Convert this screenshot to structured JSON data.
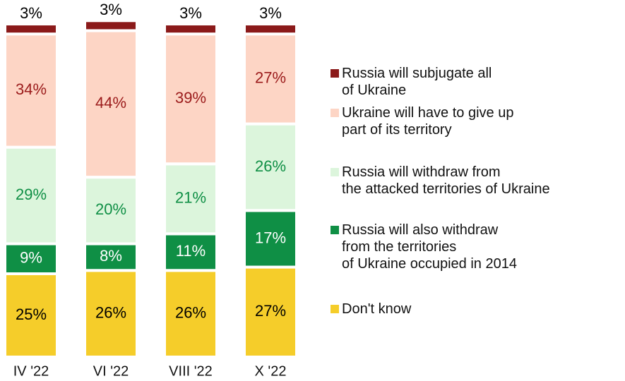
{
  "chart_data": {
    "type": "stacked_bar",
    "categories": [
      "IV '22",
      "VI '22",
      "VIII '22",
      "X '22"
    ],
    "series": [
      {
        "name": "Don't know",
        "color": "#f5cd2a",
        "label_color": "#000000",
        "values": [
          25,
          26,
          26,
          27
        ],
        "value_labels": [
          "25%",
          "26%",
          "26%",
          "27%"
        ]
      },
      {
        "name": "Russia will also withdraw\nfrom the territories\nof Ukraine occupied in 2014",
        "color": "#0f8f45",
        "label_color": "#ffffff",
        "values": [
          9,
          8,
          11,
          17
        ],
        "value_labels": [
          "9%",
          "8%",
          "11%",
          "17%"
        ]
      },
      {
        "name": "Russia will withdraw from\nthe attacked territories of Ukraine",
        "color": "#dcf5dc",
        "label_color": "#0f8f45",
        "values": [
          29,
          20,
          21,
          26
        ],
        "value_labels": [
          "29%",
          "20%",
          "21%",
          "26%"
        ]
      },
      {
        "name": "Ukraine will have to give up\npart of its territory",
        "color": "#fdd5c5",
        "label_color": "#9b1b1b",
        "values": [
          34,
          44,
          39,
          27
        ],
        "value_labels": [
          "34%",
          "44%",
          "39%",
          "27%"
        ]
      },
      {
        "name": "Russia will subjugate all\nof Ukraine",
        "color": "#8b1a1a",
        "label_color": "#000000",
        "values": [
          3,
          3,
          3,
          3
        ],
        "value_labels": [
          "3%",
          "3%",
          "3%",
          "3%"
        ]
      }
    ]
  }
}
